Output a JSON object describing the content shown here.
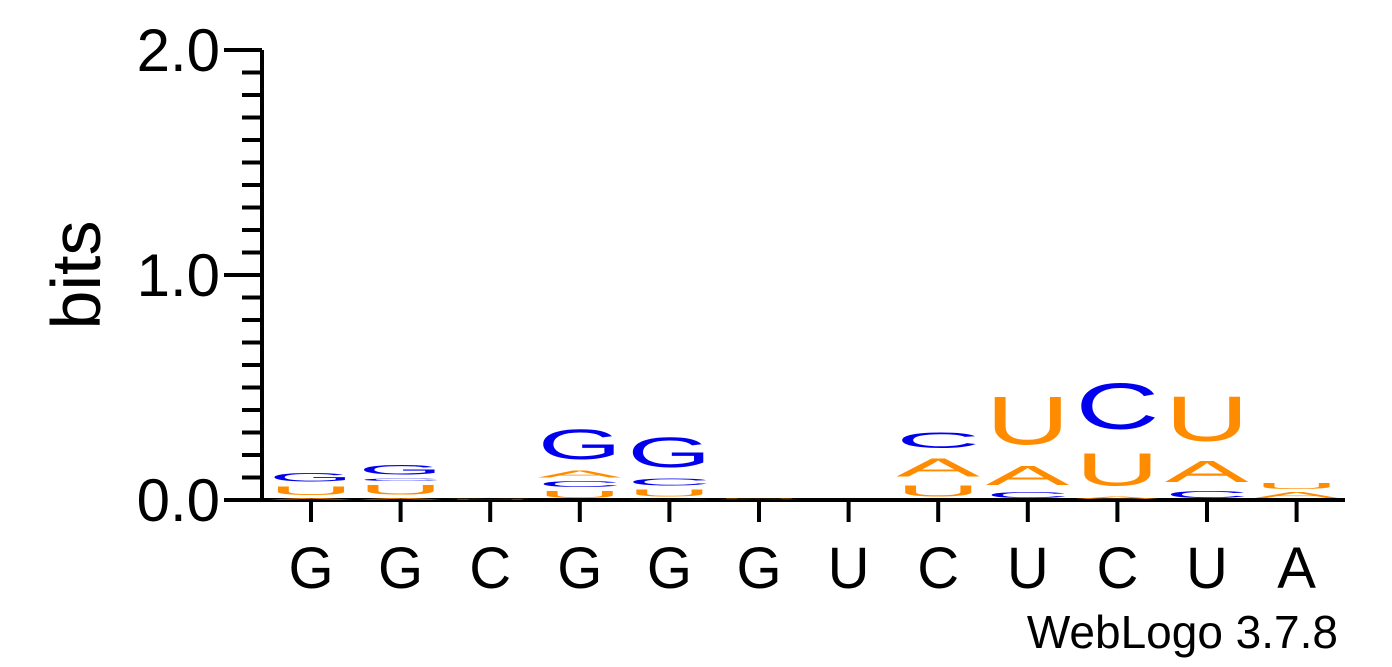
{
  "chart_data": {
    "type": "sequence-logo",
    "ylabel": "bits",
    "ylim": [
      0,
      2
    ],
    "yticks": [
      "0.0",
      "1.0",
      "2.0"
    ],
    "xlabels": [
      "G",
      "G",
      "C",
      "G",
      "G",
      "G",
      "U",
      "C",
      "U",
      "C",
      "U",
      "A"
    ],
    "colors": {
      "G": "#0000ee",
      "C": "#0000ee",
      "A": "#ff8c00",
      "U": "#ff8c00"
    },
    "positions": [
      {
        "stack": [
          {
            "letter": "A",
            "bits": 0.01
          },
          {
            "letter": "U",
            "bits": 0.06
          },
          {
            "letter": "G",
            "bits": 0.06
          }
        ]
      },
      {
        "stack": [
          {
            "letter": "A",
            "bits": 0.01
          },
          {
            "letter": "U",
            "bits": 0.07
          },
          {
            "letter": "C",
            "bits": 0.02
          },
          {
            "letter": "G",
            "bits": 0.07
          }
        ]
      },
      {
        "stack": [
          {
            "letter": "U",
            "bits": 0.005
          },
          {
            "letter": "A",
            "bits": 0.005
          }
        ]
      },
      {
        "stack": [
          {
            "letter": "U",
            "bits": 0.05
          },
          {
            "letter": "C",
            "bits": 0.04
          },
          {
            "letter": "A",
            "bits": 0.05
          },
          {
            "letter": "G",
            "bits": 0.21
          }
        ]
      },
      {
        "stack": [
          {
            "letter": "A",
            "bits": 0.005
          },
          {
            "letter": "U",
            "bits": 0.05
          },
          {
            "letter": "C",
            "bits": 0.05
          },
          {
            "letter": "G",
            "bits": 0.21
          }
        ]
      },
      {
        "stack": [
          {
            "letter": "A",
            "bits": 0.005
          },
          {
            "letter": "U",
            "bits": 0.005
          }
        ]
      },
      {
        "stack": []
      },
      {
        "stack": [
          {
            "letter": "U",
            "bits": 0.08
          },
          {
            "letter": "A",
            "bits": 0.13
          },
          {
            "letter": "C",
            "bits": 0.11
          }
        ]
      },
      {
        "stack": [
          {
            "letter": "C",
            "bits": 0.04
          },
          {
            "letter": "A",
            "bits": 0.14
          },
          {
            "letter": "U",
            "bits": 0.34
          }
        ]
      },
      {
        "stack": [
          {
            "letter": "A",
            "bits": 0.02
          },
          {
            "letter": "U",
            "bits": 0.23
          },
          {
            "letter": "C",
            "bits": 0.33
          }
        ]
      },
      {
        "stack": [
          {
            "letter": "C",
            "bits": 0.05
          },
          {
            "letter": "A",
            "bits": 0.15
          },
          {
            "letter": "U",
            "bits": 0.32
          }
        ]
      },
      {
        "stack": [
          {
            "letter": "A",
            "bits": 0.04
          },
          {
            "letter": "U",
            "bits": 0.04
          }
        ]
      }
    ]
  },
  "footer": {
    "credit": "WebLogo 3.7.8"
  }
}
